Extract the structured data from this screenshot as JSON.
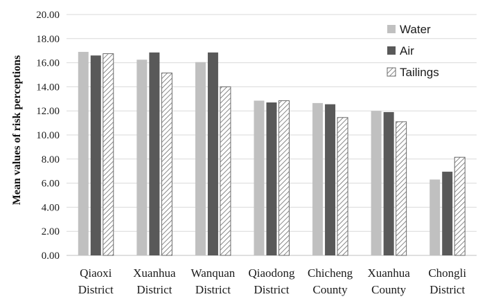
{
  "chart_data": {
    "type": "bar",
    "ylabel": "Mean values of risk perceptions",
    "xlabel": "",
    "ylim": [
      0,
      20
    ],
    "ytick_step": 2,
    "ytick_labels": [
      "0.00",
      "2.00",
      "4.00",
      "6.00",
      "8.00",
      "10.00",
      "12.00",
      "14.00",
      "16.00",
      "18.00",
      "20.00"
    ],
    "grid": true,
    "legend_position": "top-right",
    "categories": [
      [
        "Qiaoxi",
        "District"
      ],
      [
        "Xuanhua",
        "District"
      ],
      [
        "Wanquan",
        "District"
      ],
      [
        "Qiaodong",
        "District"
      ],
      [
        "Chicheng",
        "County"
      ],
      [
        "Xuanhua",
        "County"
      ],
      [
        "Chongli",
        "District"
      ]
    ],
    "series": [
      {
        "name": "Water",
        "color": "#c0c0c0",
        "pattern": "solid",
        "values": [
          16.9,
          16.25,
          16.05,
          12.85,
          12.65,
          12.0,
          6.3
        ]
      },
      {
        "name": "Air",
        "color": "#595959",
        "pattern": "solid",
        "values": [
          16.6,
          16.85,
          16.85,
          12.7,
          12.55,
          11.9,
          6.95
        ]
      },
      {
        "name": "Tailings",
        "color": "#ffffff",
        "pattern": "hatch",
        "values": [
          16.75,
          15.15,
          14.0,
          12.85,
          11.45,
          11.1,
          8.15
        ]
      }
    ]
  }
}
